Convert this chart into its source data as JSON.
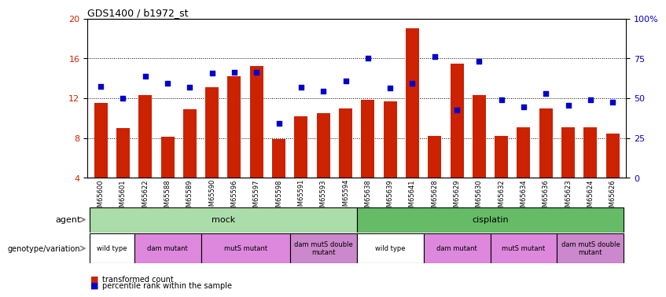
{
  "title": "GDS1400 / b1972_st",
  "samples": [
    "GSM65600",
    "GSM65601",
    "GSM65622",
    "GSM65588",
    "GSM65589",
    "GSM65590",
    "GSM65596",
    "GSM65597",
    "GSM65598",
    "GSM65591",
    "GSM65593",
    "GSM65594",
    "GSM65638",
    "GSM65639",
    "GSM65641",
    "GSM65628",
    "GSM65629",
    "GSM65630",
    "GSM65632",
    "GSM65634",
    "GSM65636",
    "GSM65623",
    "GSM65624",
    "GSM65626"
  ],
  "bar_values": [
    11.5,
    9.0,
    12.3,
    8.1,
    10.9,
    13.1,
    14.2,
    15.2,
    7.9,
    10.2,
    10.5,
    11.0,
    11.8,
    11.7,
    19.0,
    8.2,
    15.5,
    12.3,
    8.2,
    9.1,
    11.0,
    9.1,
    9.1,
    8.4
  ],
  "dot_values": [
    13.2,
    12.0,
    14.2,
    13.5,
    13.1,
    14.5,
    14.6,
    14.6,
    9.5,
    13.1,
    12.7,
    13.7,
    16.0,
    13.0,
    13.5,
    16.2,
    10.8,
    15.7,
    11.8,
    11.1,
    12.5,
    11.3,
    11.8,
    11.6
  ],
  "ylim": [
    4,
    20
  ],
  "yticks": [
    4,
    8,
    12,
    16,
    20
  ],
  "right_yticks": [
    0,
    25,
    50,
    75,
    100
  ],
  "right_ytick_labels": [
    "0",
    "25",
    "50",
    "75",
    "100%"
  ],
  "bar_color": "#cc2200",
  "dot_color": "#0000cc",
  "agent_mock_color": "#aaddaa",
  "agent_cisplatin_color": "#66bb66",
  "mock_groups": [
    {
      "label": "wild type",
      "start": 0,
      "end": 2,
      "color": "#ffffff"
    },
    {
      "label": "dam mutant",
      "start": 2,
      "end": 5,
      "color": "#dd88dd"
    },
    {
      "label": "mutS mutant",
      "start": 5,
      "end": 9,
      "color": "#dd88dd"
    },
    {
      "label": "dam mutS double\nmutant",
      "start": 9,
      "end": 12,
      "color": "#cc88cc"
    }
  ],
  "cisplatin_groups": [
    {
      "label": "wild type",
      "start": 12,
      "end": 15,
      "color": "#ffffff"
    },
    {
      "label": "dam mutant",
      "start": 15,
      "end": 18,
      "color": "#dd88dd"
    },
    {
      "label": "mutS mutant",
      "start": 18,
      "end": 21,
      "color": "#dd88dd"
    },
    {
      "label": "dam mutS double\nmutant",
      "start": 21,
      "end": 24,
      "color": "#cc88cc"
    }
  ]
}
